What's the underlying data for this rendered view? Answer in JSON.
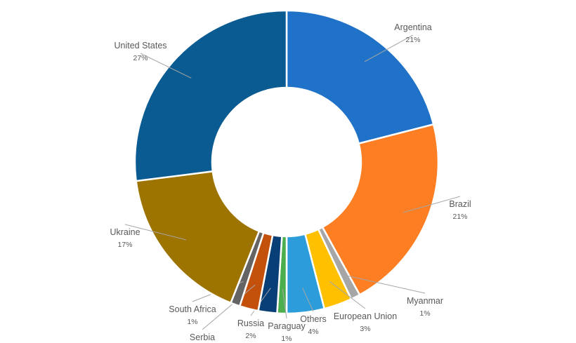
{
  "chart_data": {
    "type": "pie",
    "variant": "donut",
    "title": "",
    "slices": [
      {
        "label": "Argentina",
        "value": 21,
        "value_label": "21%",
        "color": "#1f72c7"
      },
      {
        "label": "Brazil",
        "value": 21,
        "value_label": "21%",
        "color": "#fd7e23"
      },
      {
        "label": "Myanmar",
        "value": 1,
        "value_label": "1%",
        "color": "#a6a6a6"
      },
      {
        "label": "European Union",
        "value": 3,
        "value_label": "3%",
        "color": "#ffc000"
      },
      {
        "label": "Others",
        "value": 4,
        "value_label": "4%",
        "color": "#2c9cdb"
      },
      {
        "label": "Paraguay",
        "value": 1,
        "value_label": "1%",
        "color": "#4cae4c"
      },
      {
        "label": "Russia",
        "value": 2,
        "value_label": "2%",
        "color": "#083f76"
      },
      {
        "label": "Serbia",
        "value": 2,
        "value_label": "2%",
        "color": "#c3500b"
      },
      {
        "label": "South Africa",
        "value": 1,
        "value_label": "1%",
        "color": "#646464"
      },
      {
        "label": "Ukraine",
        "value": 17,
        "value_label": "17%",
        "color": "#9e7400"
      },
      {
        "label": "United States",
        "value": 27,
        "value_label": "27%",
        "color": "#0a5b91"
      }
    ],
    "legend": "none"
  }
}
